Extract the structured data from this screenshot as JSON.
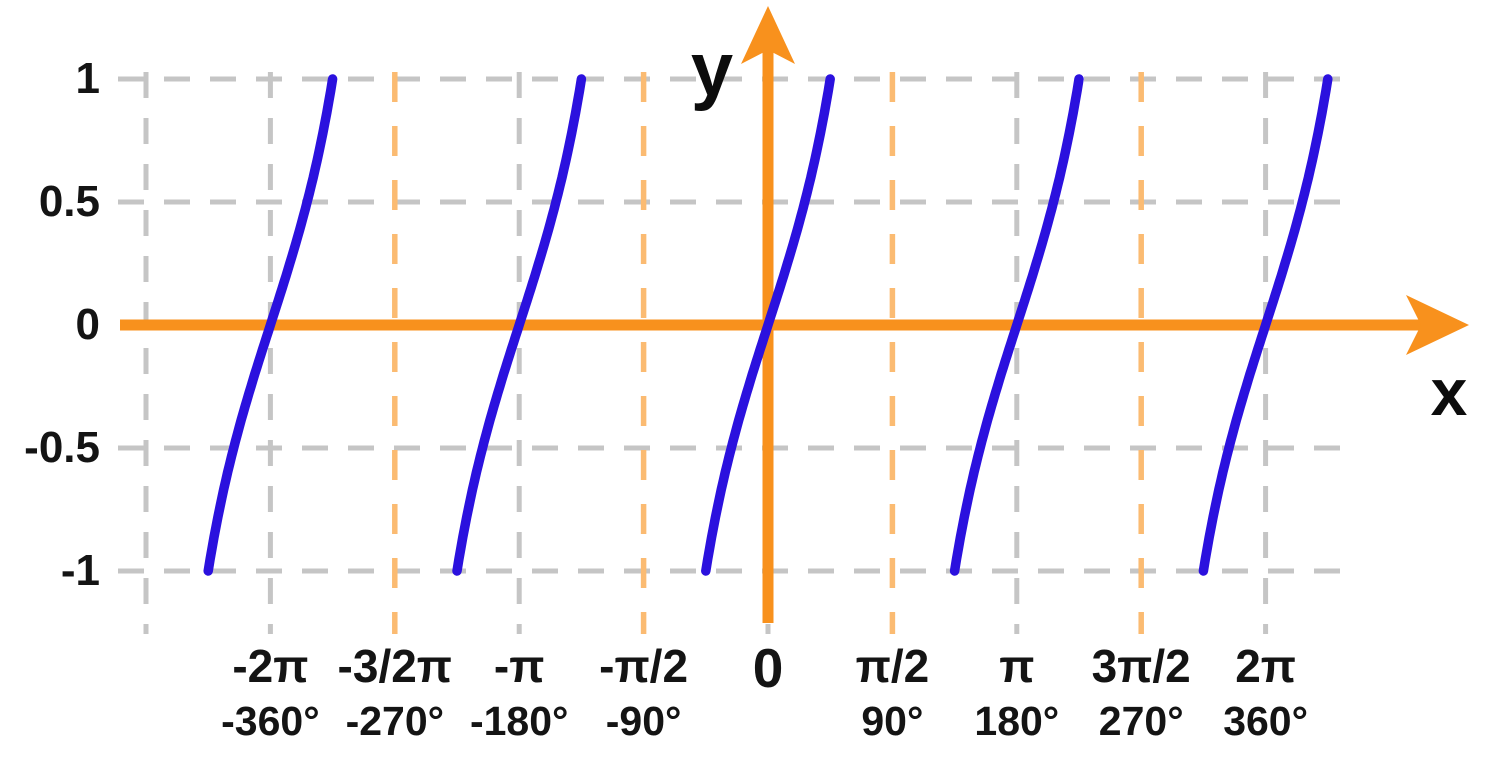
{
  "chart_data": {
    "type": "line",
    "function": "y = tan(x)",
    "description": "Tangent curve branches clipped to y in [-1,1], crossing zero at multiples of pi",
    "xlabel": "x",
    "ylabel": "y",
    "ylim": [
      -1,
      1
    ],
    "grid": true,
    "y_ticks": [
      {
        "label": "1",
        "value": 1
      },
      {
        "label": "0.5",
        "value": 0.5
      },
      {
        "label": "0",
        "value": 0
      },
      {
        "label": "-0.5",
        "value": -0.5
      },
      {
        "label": "-1",
        "value": -1
      }
    ],
    "x_ticks": [
      {
        "radians_label": "-2π",
        "degrees_label": "-360°",
        "value_half_pi": -4
      },
      {
        "radians_label": "-3/2π",
        "degrees_label": "-270°",
        "value_half_pi": -3
      },
      {
        "radians_label": "-π",
        "degrees_label": "-180°",
        "value_half_pi": -2
      },
      {
        "radians_label": "-π/2",
        "degrees_label": "-90°",
        "value_half_pi": -1
      },
      {
        "radians_label": "0",
        "degrees_label": "",
        "value_half_pi": 0
      },
      {
        "radians_label": "π/2",
        "degrees_label": "90°",
        "value_half_pi": 1
      },
      {
        "radians_label": "π",
        "degrees_label": "180°",
        "value_half_pi": 2
      },
      {
        "radians_label": "3π/2",
        "degrees_label": "270°",
        "value_half_pi": 3
      },
      {
        "radians_label": "2π",
        "degrees_label": "360°",
        "value_half_pi": 4
      }
    ],
    "branches": {
      "centers_half_pi": [
        -4,
        -2,
        0,
        2,
        4
      ],
      "t_range_radians": [
        -0.7853981634,
        0.7853981634
      ],
      "clip_y": [
        -1,
        1
      ]
    },
    "gridlines": {
      "horizontal_values": [
        1,
        0.5,
        -0.5,
        -1
      ],
      "vertical_gray_half_pi": [
        -5,
        -4,
        -2,
        0,
        2,
        4
      ],
      "vertical_orange_half_pi": [
        -3,
        -1,
        1,
        3
      ]
    },
    "colors": {
      "axis_orange": "#F8911D",
      "asymptote_orange": "#FBBB72",
      "grid_gray": "#C5C5C5",
      "curve_blue": "#2B11DE",
      "text_black": "#141414",
      "background": "#FFFFFF"
    }
  }
}
